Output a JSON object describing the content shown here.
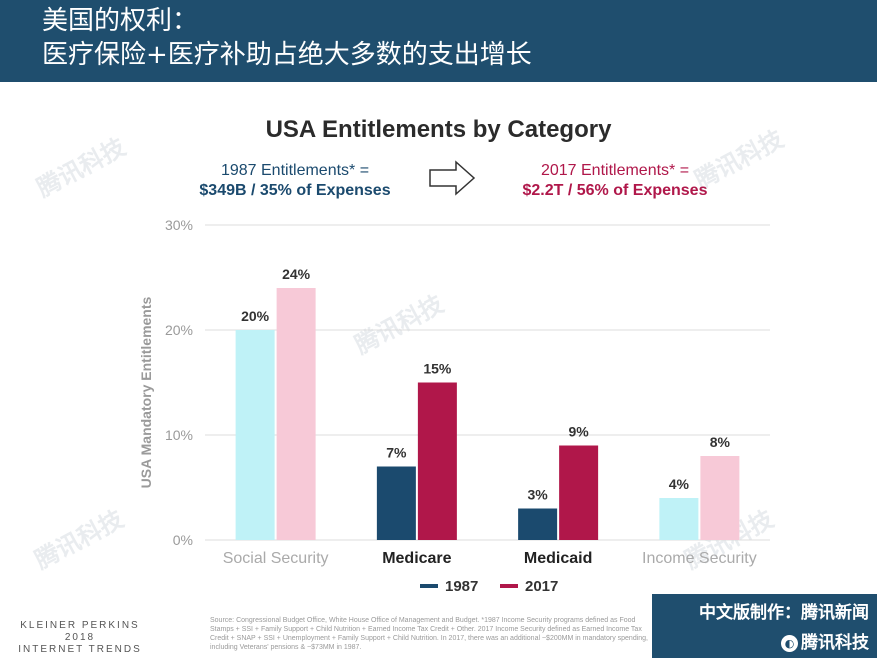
{
  "header": {
    "line1": "美国的权利：",
    "line2": "医疗保险+医疗补助占绝大多数的支出增长"
  },
  "summary": {
    "left_line1": "1987 Entitlements* =",
    "left_line2": "$349B / 35% of Expenses",
    "right_line1": "2017 Entitlements* =",
    "right_line2": "$2.2T / 56% of Expenses"
  },
  "watermark": "腾讯科技",
  "footer": {
    "logo_line1": "KLEINER PERKINS",
    "logo_line2": "2018",
    "logo_line3": "INTERNET TRENDS",
    "source": "Source: Congressional Budget Office, White House Office of Management and Budget. *1987 Income Security programs defined as Food Stamps + SSI + Family Support + Child Nutrition + Earned Income Tax Credit + Other. 2017 Income Security defined as Earned Income Tax Credit + SNAP + SSI + Unemployment + Family Support + Child Nutrition. In 2017, there was an additional ~$200MM in mandatory spending, including Veterans' pensions & ~$73MM in 1987.",
    "badge_line1": "中文版制作：腾讯新闻",
    "badge_line2": "腾讯科技"
  },
  "chart_data": {
    "type": "bar",
    "title": "USA Entitlements by Category",
    "ylabel": "USA Mandatory Entitlements",
    "xlabel": "",
    "ylim": [
      0,
      30
    ],
    "yticks": [
      "0%",
      "10%",
      "20%",
      "30%"
    ],
    "categories": [
      "Social Security",
      "Medicare",
      "Medicaid",
      "Income Security"
    ],
    "series": [
      {
        "name": "1987",
        "values": [
          20,
          7,
          3,
          4
        ],
        "labels": [
          "20%",
          "7%",
          "3%",
          "4%"
        ]
      },
      {
        "name": "2017",
        "values": [
          24,
          15,
          9,
          8
        ],
        "labels": [
          "24%",
          "15%",
          "9%",
          "8%"
        ]
      }
    ],
    "colors": {
      "1987": [
        "#bff2f7",
        "#1b4a6e",
        "#1b4a6e",
        "#bff2f7"
      ],
      "2017": [
        "#f7c9d7",
        "#b0174a",
        "#b0174a",
        "#f7c9d7"
      ],
      "legend_1987": "#1b4a6e",
      "legend_2017": "#b0174a"
    },
    "category_emphasis": [
      false,
      true,
      true,
      false
    ],
    "grid": true,
    "legend_position": "bottom"
  }
}
